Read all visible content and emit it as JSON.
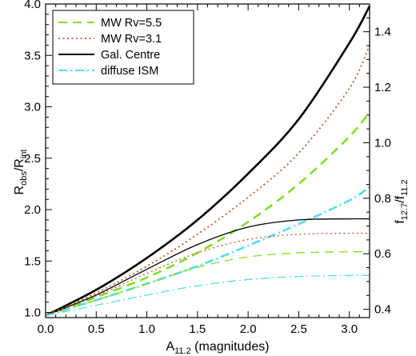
{
  "chart_data": {
    "type": "line",
    "x_axis": {
      "label": "A",
      "label_sub": "11.2",
      "label_suffix": " (magnitudes)",
      "range": [
        0.0,
        3.2
      ],
      "ticks": [
        0.0,
        0.5,
        1.0,
        1.5,
        2.0,
        2.5,
        3.0
      ],
      "tick_labels": [
        "0.0",
        "0.5",
        "1.0",
        "1.5",
        "2.0",
        "2.5",
        "3.0"
      ]
    },
    "y_axis_left": {
      "label_main": "R",
      "label_sub1": "obs",
      "label_mid": "/R",
      "label_sub2": "int",
      "range": [
        0.95,
        4.0
      ],
      "ticks": [
        1.0,
        1.5,
        2.0,
        2.5,
        3.0,
        3.5,
        4.0
      ],
      "tick_labels": [
        "1.0",
        "1.5",
        "2.0",
        "2.5",
        "3.0",
        "3.5",
        "4.0"
      ]
    },
    "y_axis_right": {
      "label_main": "f",
      "label_sub1": "12.7",
      "label_mid": "/f",
      "label_sub2": "11.2",
      "range": [
        0.37,
        1.5
      ],
      "ticks": [
        0.4,
        0.6,
        0.8,
        1.0,
        1.2,
        1.4
      ],
      "tick_labels": [
        "0.4",
        "0.6",
        "0.8",
        "1.0",
        "1.2",
        "1.4"
      ]
    },
    "legend": {
      "position": "top-left",
      "entries": [
        {
          "label": "MW Rv=5.5",
          "color": "#7fe02a",
          "dash": "dashed"
        },
        {
          "label": "MW Rv=3.1",
          "color": "#c8541e",
          "dash": "dotted"
        },
        {
          "label": "Gal. Centre",
          "color": "#000000",
          "dash": "solid"
        },
        {
          "label": "diffuse ISM",
          "color": "#55dde8",
          "dash": "dashdot"
        }
      ]
    },
    "series": [
      {
        "group": "ratio",
        "color": "#000000",
        "dash": "solid",
        "width": 2.6,
        "x": [
          0.0,
          0.5,
          1.0,
          1.5,
          2.0,
          2.5,
          3.0,
          3.2
        ],
        "y": [
          0.97,
          1.22,
          1.53,
          1.9,
          2.35,
          2.88,
          3.62,
          3.98
        ]
      },
      {
        "group": "ratio",
        "color": "#c8541e",
        "dash": "dotted",
        "width": 1.8,
        "x": [
          0.0,
          0.5,
          1.0,
          1.5,
          2.0,
          2.5,
          3.0,
          3.2
        ],
        "y": [
          0.97,
          1.19,
          1.45,
          1.76,
          2.12,
          2.55,
          3.18,
          3.6
        ]
      },
      {
        "group": "ratio",
        "color": "#7fe02a",
        "dash": "dashed",
        "width": 2.6,
        "x": [
          0.0,
          0.5,
          1.0,
          1.5,
          2.0,
          2.5,
          3.0,
          3.2
        ],
        "y": [
          0.97,
          1.15,
          1.34,
          1.58,
          1.88,
          2.25,
          2.71,
          2.95
        ]
      },
      {
        "group": "ratio",
        "color": "#55dde8",
        "dash": "dashdot",
        "width": 2.6,
        "x": [
          0.0,
          0.5,
          1.0,
          1.5,
          2.0,
          2.5,
          3.0,
          3.2
        ],
        "y": [
          0.97,
          1.12,
          1.28,
          1.45,
          1.65,
          1.86,
          2.09,
          2.22
        ]
      },
      {
        "group": "flux",
        "color": "#000000",
        "dash": "solid",
        "width": 1.3,
        "x": [
          0.0,
          0.5,
          1.0,
          1.5,
          2.0,
          2.5,
          3.0,
          3.2
        ],
        "y": [
          0.97,
          1.17,
          1.42,
          1.66,
          1.83,
          1.9,
          1.91,
          1.91
        ]
      },
      {
        "group": "flux",
        "color": "#c8541e",
        "dash": "dotted",
        "width": 1.3,
        "x": [
          0.0,
          0.5,
          1.0,
          1.5,
          2.0,
          2.5,
          3.0,
          3.2
        ],
        "y": [
          0.97,
          1.16,
          1.38,
          1.58,
          1.71,
          1.76,
          1.77,
          1.77
        ]
      },
      {
        "group": "flux",
        "color": "#7fe02a",
        "dash": "dashed",
        "width": 1.3,
        "x": [
          0.0,
          0.5,
          1.0,
          1.5,
          2.0,
          2.5,
          3.0,
          3.2
        ],
        "y": [
          0.97,
          1.12,
          1.28,
          1.44,
          1.54,
          1.58,
          1.59,
          1.59
        ]
      },
      {
        "group": "flux",
        "color": "#55dde8",
        "dash": "dashdot",
        "width": 1.3,
        "x": [
          0.0,
          0.5,
          1.0,
          1.5,
          2.0,
          2.5,
          3.0,
          3.2
        ],
        "y": [
          0.97,
          1.07,
          1.17,
          1.26,
          1.32,
          1.35,
          1.36,
          1.36
        ]
      }
    ]
  }
}
